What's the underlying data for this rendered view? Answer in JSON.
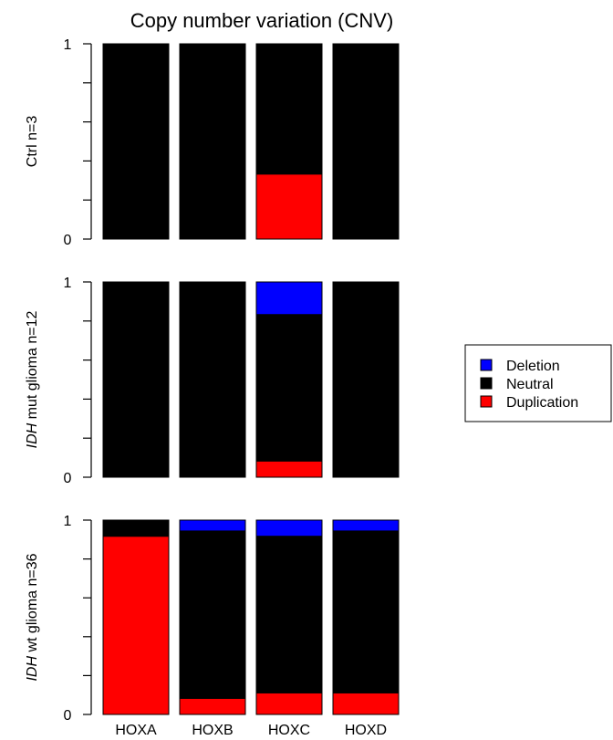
{
  "chart_data": {
    "type": "bar",
    "stacked": true,
    "title": "Copy number variation (CNV)",
    "categories": [
      "HOXA",
      "HOXB",
      "HOXC",
      "HOXD"
    ],
    "legend": {
      "placement": "right",
      "entries": [
        {
          "name": "Deletion",
          "color": "#0000ff"
        },
        {
          "name": "Neutral",
          "color": "#000000"
        },
        {
          "name": "Duplication",
          "color": "#ff0000"
        }
      ]
    },
    "ylim": [
      0,
      1
    ],
    "yticks": [
      0,
      0.2,
      0.4,
      0.6,
      0.8,
      1
    ],
    "ytick_labels": [
      "0",
      "",
      "",
      "",
      "",
      "1"
    ],
    "panels": [
      {
        "label_parts": [
          {
            "text": "Ctrl n=3",
            "italic": false
          }
        ],
        "series": [
          {
            "name": "Duplication",
            "values": [
              0,
              0,
              0.333,
              0
            ]
          },
          {
            "name": "Neutral",
            "values": [
              1,
              1,
              0.667,
              1
            ]
          },
          {
            "name": "Deletion",
            "values": [
              0,
              0,
              0,
              0
            ]
          }
        ]
      },
      {
        "label_parts": [
          {
            "text": "IDH",
            "italic": true
          },
          {
            "text": " mut glioma n=12",
            "italic": false
          }
        ],
        "series": [
          {
            "name": "Duplication",
            "values": [
              0,
              0,
              0.083,
              0
            ]
          },
          {
            "name": "Neutral",
            "values": [
              1,
              1,
              0.75,
              1
            ]
          },
          {
            "name": "Deletion",
            "values": [
              0,
              0,
              0.167,
              0
            ]
          }
        ]
      },
      {
        "label_parts": [
          {
            "text": "IDH",
            "italic": true
          },
          {
            "text": " wt glioma n=36",
            "italic": false
          }
        ],
        "series": [
          {
            "name": "Duplication",
            "values": [
              0.917,
              0.083,
              0.111,
              0.111
            ]
          },
          {
            "name": "Neutral",
            "values": [
              0.083,
              0.861,
              0.806,
              0.833
            ]
          },
          {
            "name": "Deletion",
            "values": [
              0,
              0.056,
              0.083,
              0.056
            ]
          }
        ]
      }
    ],
    "colors": {
      "Deletion": "#0000ff",
      "Neutral": "#000000",
      "Duplication": "#ff0000"
    }
  }
}
